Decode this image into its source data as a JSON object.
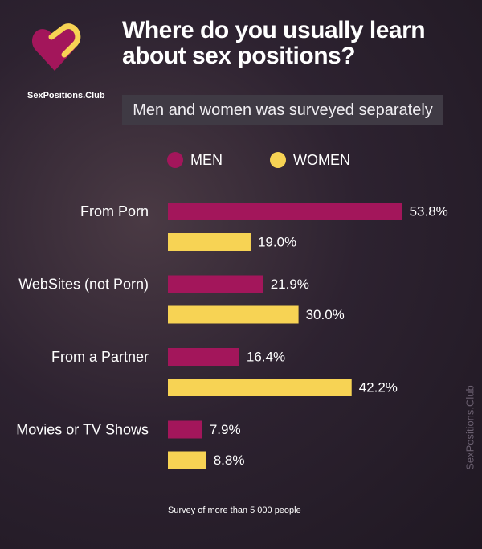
{
  "chart_data": {
    "type": "bar",
    "title": "Where do you usually learn about sex positions?",
    "subtitle": "Men and women was surveyed separately",
    "brand": "SexPositions.Club",
    "watermark": "SexPositions.Club",
    "source": "Survey of more than 5 000 people",
    "orientation": "horizontal",
    "categories": [
      "From Porn",
      "WebSites (not Porn)",
      "From a Partner",
      "Movies or TV Shows"
    ],
    "series": [
      {
        "name": "MEN",
        "color": "#a3165b",
        "values": [
          53.8,
          21.9,
          16.4,
          7.9
        ],
        "value_labels": [
          "53.8%",
          "21.9%",
          "16.4%",
          "7.9%"
        ]
      },
      {
        "name": "WOMEN",
        "color": "#f7d354",
        "values": [
          19.0,
          30.0,
          42.2,
          8.8
        ],
        "value_labels": [
          "19.0%",
          "30.0%",
          "42.2%",
          "8.8%"
        ]
      }
    ]
  }
}
